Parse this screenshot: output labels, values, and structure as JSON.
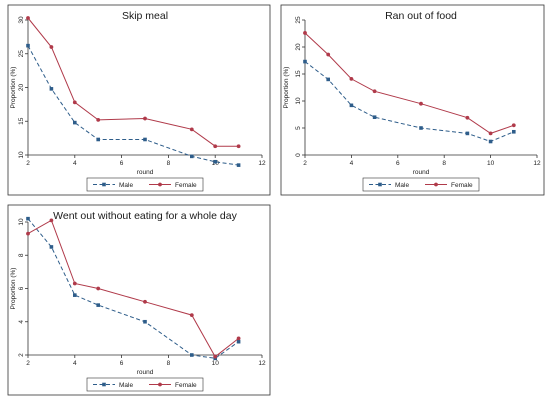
{
  "figure": {
    "background": "#ffffff"
  },
  "chart_data": [
    {
      "type": "line",
      "title": "Skip meal",
      "xlabel": "round",
      "ylabel": "Proportion (%)",
      "xlim": [
        2,
        12
      ],
      "ylim": [
        10,
        30
      ],
      "xticks": [
        2,
        4,
        6,
        8,
        10,
        12
      ],
      "yticks": [
        10,
        15,
        20,
        25,
        30
      ],
      "legend": "bottom",
      "series": [
        {
          "name": "Male",
          "color": "#2e5d8a",
          "style": "dashed",
          "marker": "square",
          "x": [
            2,
            3,
            4,
            5,
            7,
            9,
            10,
            11
          ],
          "y": [
            26.2,
            19.8,
            14.8,
            12.3,
            12.3,
            9.8,
            9.0,
            8.5
          ]
        },
        {
          "name": "Female",
          "color": "#b03a4a",
          "style": "solid",
          "marker": "circle",
          "x": [
            2,
            3,
            4,
            5,
            7,
            9,
            10,
            11
          ],
          "y": [
            30.3,
            26.0,
            17.8,
            15.2,
            15.4,
            13.8,
            11.3,
            11.3
          ]
        }
      ]
    },
    {
      "type": "line",
      "title": "Ran out of food",
      "xlabel": "round",
      "ylabel": "Proportion (%)",
      "xlim": [
        2,
        12
      ],
      "ylim": [
        0,
        25
      ],
      "xticks": [
        2,
        4,
        6,
        8,
        10,
        12
      ],
      "yticks": [
        0,
        5,
        10,
        15,
        20,
        25
      ],
      "legend": "bottom",
      "series": [
        {
          "name": "Male",
          "color": "#2e5d8a",
          "style": "dashed",
          "marker": "square",
          "x": [
            2,
            3,
            4,
            5,
            7,
            9,
            10,
            11
          ],
          "y": [
            17.3,
            14.0,
            9.2,
            7.0,
            5.0,
            4.0,
            2.5,
            4.3
          ]
        },
        {
          "name": "Female",
          "color": "#b03a4a",
          "style": "solid",
          "marker": "circle",
          "x": [
            2,
            3,
            4,
            5,
            7,
            9,
            10,
            11
          ],
          "y": [
            22.6,
            18.6,
            14.1,
            11.8,
            9.5,
            6.9,
            4.0,
            5.5
          ]
        }
      ]
    },
    {
      "type": "line",
      "title": "Went out without eating for a whole day",
      "xlabel": "round",
      "ylabel": "Proportion (%)",
      "xlim": [
        2,
        12
      ],
      "ylim": [
        2,
        10
      ],
      "xticks": [
        2,
        4,
        6,
        8,
        10,
        12
      ],
      "yticks": [
        2,
        4,
        6,
        8,
        10
      ],
      "legend": "bottom",
      "series": [
        {
          "name": "Male",
          "color": "#2e5d8a",
          "style": "dashed",
          "marker": "square",
          "x": [
            2,
            3,
            4,
            5,
            7,
            9,
            10,
            11
          ],
          "y": [
            10.2,
            8.5,
            5.6,
            5.0,
            4.0,
            2.0,
            1.8,
            2.8
          ]
        },
        {
          "name": "Female",
          "color": "#b03a4a",
          "style": "solid",
          "marker": "circle",
          "x": [
            2,
            3,
            4,
            5,
            7,
            9,
            10,
            11
          ],
          "y": [
            9.3,
            10.1,
            6.3,
            6.0,
            5.2,
            4.4,
            1.9,
            3.0
          ]
        }
      ]
    }
  ]
}
